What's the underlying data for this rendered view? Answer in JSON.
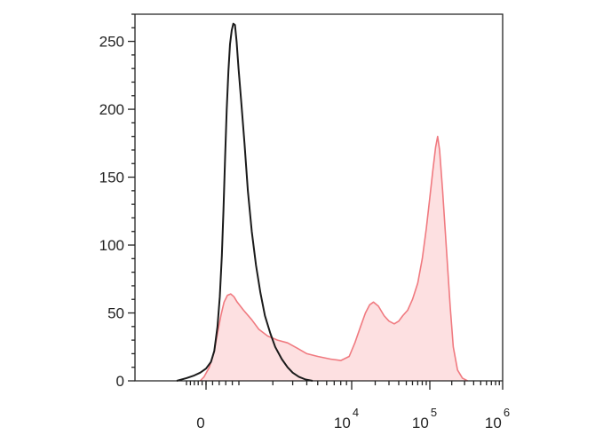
{
  "chart_data": {
    "type": "area",
    "title": "",
    "xlabel": "",
    "ylabel": "",
    "ylim": [
      0,
      270
    ],
    "x_scale": "biexponential",
    "xlim": [
      -2000,
      1000000
    ],
    "y_ticks": [
      {
        "value": 0,
        "label": "0"
      },
      {
        "value": 50,
        "label": "50"
      },
      {
        "value": 100,
        "label": "100"
      },
      {
        "value": 150,
        "label": "150"
      },
      {
        "value": 200,
        "label": "200"
      },
      {
        "value": 250,
        "label": "250"
      }
    ],
    "x_ticks": [
      {
        "value": 0,
        "base": "0",
        "exp": ""
      },
      {
        "value": 10000,
        "base": "10",
        "exp": "4"
      },
      {
        "value": 100000,
        "base": "10",
        "exp": "5"
      },
      {
        "value": 1000000,
        "base": "10",
        "exp": "6"
      }
    ],
    "grid": false,
    "legend": "none",
    "series": [
      {
        "color": "#1a1a1a",
        "fill": "none",
        "points": [
          [
            -1500,
            0
          ],
          [
            -1000,
            2
          ],
          [
            -600,
            4
          ],
          [
            -300,
            6
          ],
          [
            0,
            9
          ],
          [
            150,
            14
          ],
          [
            250,
            22
          ],
          [
            350,
            40
          ],
          [
            420,
            62
          ],
          [
            480,
            92
          ],
          [
            530,
            125
          ],
          [
            580,
            165
          ],
          [
            630,
            200
          ],
          [
            680,
            228
          ],
          [
            730,
            248
          ],
          [
            780,
            258
          ],
          [
            830,
            263
          ],
          [
            880,
            262
          ],
          [
            930,
            250
          ],
          [
            990,
            230
          ],
          [
            1050,
            205
          ],
          [
            1120,
            175
          ],
          [
            1200,
            140
          ],
          [
            1300,
            110
          ],
          [
            1420,
            85
          ],
          [
            1550,
            65
          ],
          [
            1700,
            48
          ],
          [
            1900,
            35
          ],
          [
            2100,
            25
          ],
          [
            2400,
            16
          ],
          [
            2700,
            10
          ],
          [
            3000,
            6
          ],
          [
            3400,
            3
          ],
          [
            3900,
            1
          ],
          [
            4500,
            0
          ]
        ]
      },
      {
        "color": "#f07a80",
        "fill": "#fde0e1",
        "points": [
          [
            -300,
            0
          ],
          [
            -100,
            3
          ],
          [
            100,
            10
          ],
          [
            250,
            22
          ],
          [
            350,
            35
          ],
          [
            450,
            48
          ],
          [
            550,
            58
          ],
          [
            650,
            63
          ],
          [
            750,
            64
          ],
          [
            850,
            62
          ],
          [
            950,
            58
          ],
          [
            1100,
            52
          ],
          [
            1300,
            45
          ],
          [
            1500,
            38
          ],
          [
            1800,
            33
          ],
          [
            2200,
            30
          ],
          [
            2700,
            28
          ],
          [
            3300,
            24
          ],
          [
            4000,
            20
          ],
          [
            5000,
            18
          ],
          [
            6500,
            16
          ],
          [
            8000,
            15
          ],
          [
            9500,
            18
          ],
          [
            11000,
            28
          ],
          [
            13000,
            40
          ],
          [
            15000,
            50
          ],
          [
            17000,
            56
          ],
          [
            19000,
            58
          ],
          [
            22000,
            55
          ],
          [
            26000,
            48
          ],
          [
            30000,
            44
          ],
          [
            35000,
            42
          ],
          [
            40000,
            44
          ],
          [
            45000,
            48
          ],
          [
            52000,
            52
          ],
          [
            60000,
            60
          ],
          [
            70000,
            72
          ],
          [
            80000,
            90
          ],
          [
            90000,
            112
          ],
          [
            100000,
            135
          ],
          [
            110000,
            155
          ],
          [
            120000,
            172
          ],
          [
            128000,
            180
          ],
          [
            136000,
            170
          ],
          [
            150000,
            140
          ],
          [
            170000,
            95
          ],
          [
            190000,
            55
          ],
          [
            210000,
            25
          ],
          [
            240000,
            8
          ],
          [
            280000,
            2
          ],
          [
            330000,
            0
          ]
        ]
      }
    ]
  }
}
